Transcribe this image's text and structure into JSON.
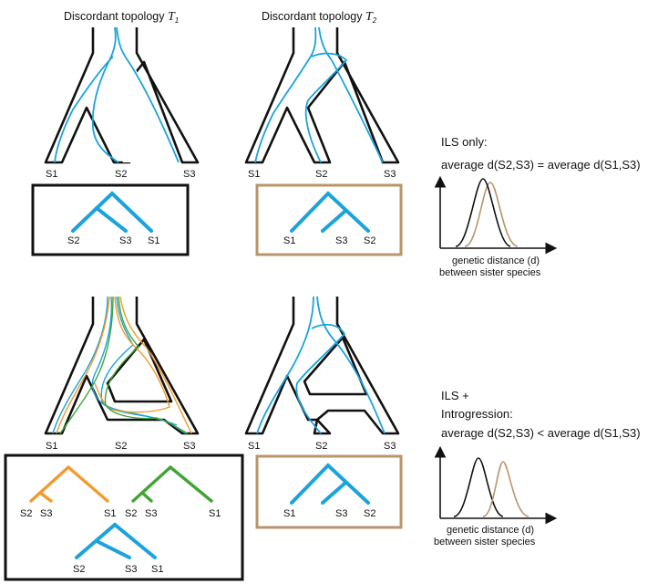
{
  "colors": {
    "species_outline": "#111111",
    "gene_blue": "#1aa3dc",
    "gene_orange": "#f39a2b",
    "gene_green": "#3fa535",
    "box_black": "#111111",
    "box_tan": "#b8956a",
    "curve_black": "#111111",
    "curve_tan": "#b8956a"
  },
  "titles": {
    "t1_prefix": "Discordant topology ",
    "t1_var": "T",
    "t1_sub": "1",
    "t2_prefix": "Discordant topology ",
    "t2_var": "T",
    "t2_sub": "2"
  },
  "species_tips": {
    "top_left": [
      "S1",
      "S2",
      "S3"
    ],
    "top_mid": [
      "S1",
      "S2",
      "S3"
    ],
    "bot_left": [
      "S1",
      "S2",
      "S3"
    ],
    "bot_mid": [
      "S1",
      "S2",
      "S3"
    ]
  },
  "gene_trees": {
    "top_left": [
      "S2",
      "S3",
      "S1"
    ],
    "top_mid": [
      "S1",
      "S3",
      "S2"
    ],
    "bot_left_orange": [
      "S2",
      "S3",
      "S1"
    ],
    "bot_left_green": [
      "S2",
      "S3",
      "S1"
    ],
    "bot_left_blue": [
      "S2",
      "S3",
      "S1"
    ],
    "bot_mid": [
      "S1",
      "S3",
      "S2"
    ]
  },
  "panels": {
    "ils_only": {
      "heading": "ILS only:",
      "equation": "average d(S2,S3) = average d(S1,S3)",
      "xlabel_line1": "genetic distance (d)",
      "xlabel_line2": "between sister species"
    },
    "ils_introgression": {
      "heading_line1": "ILS +",
      "heading_line2": "Introgression:",
      "equation": "average d(S2,S3) < average d(S1,S3)",
      "xlabel_line1": "genetic distance (d)",
      "xlabel_line2": "between sister species"
    }
  }
}
